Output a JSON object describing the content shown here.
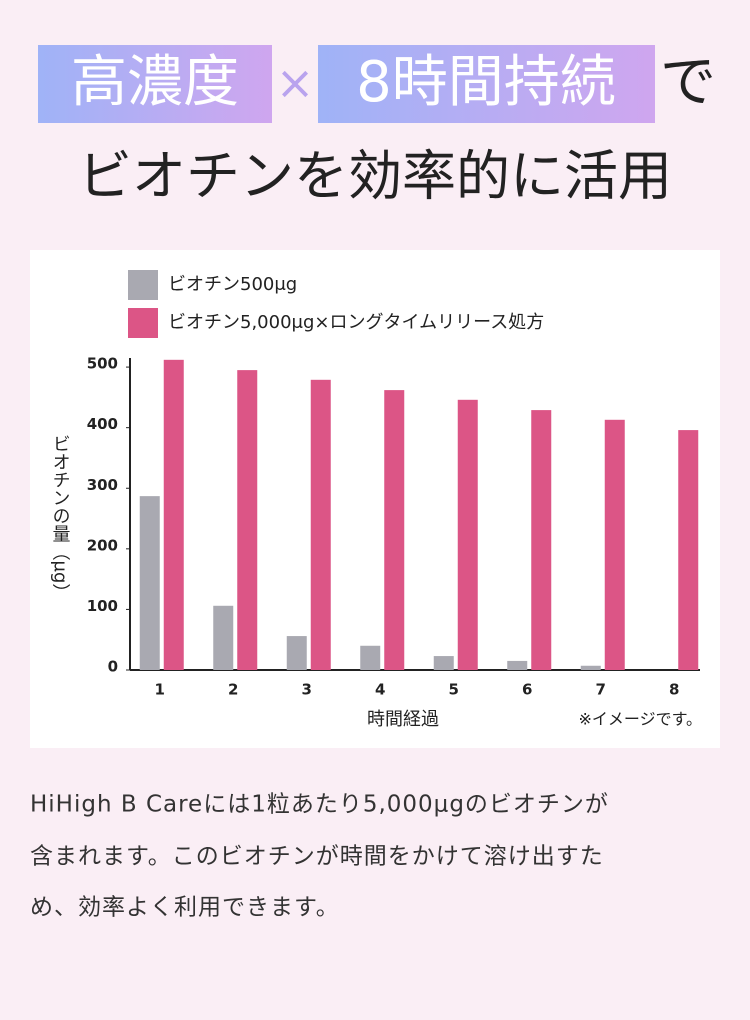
{
  "header": {
    "title_parts": [
      "高濃度",
      "×",
      "8時間持続",
      "で"
    ],
    "subtitle": "ビオチンを効率的に活用"
  },
  "chart_data": {
    "type": "bar",
    "y_label": "ビオチンの量（μg）",
    "x_label": "時間経過",
    "note": "※イメージです。",
    "categories": [
      "1",
      "2",
      "3",
      "4",
      "5",
      "6",
      "7",
      "8"
    ],
    "series": [
      {
        "name": "ビオチン500μg",
        "color": "#a9a9b1",
        "values": [
          287,
          106,
          56,
          40,
          23,
          15,
          7,
          0
        ]
      },
      {
        "name": "ビオチン5,000μg×ロングタイムリリース処方",
        "color": "#dc5586",
        "values": [
          512,
          495,
          479,
          462,
          446,
          429,
          413,
          396
        ]
      }
    ],
    "ylim": [
      0,
      515
    ],
    "yticks": [
      0,
      100,
      200,
      300,
      400,
      500
    ]
  },
  "body": {
    "lines": [
      "HiHigh B Careには1粒あたり5,000μgのビオチンが",
      "含まれます。このビオチンが時間をかけて溶け出すた",
      "め、効率よく利用できます。"
    ]
  }
}
